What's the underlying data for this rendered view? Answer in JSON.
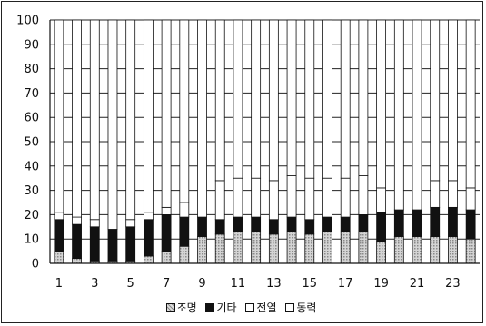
{
  "chart_data": {
    "type": "bar",
    "stacked": true,
    "categories": [
      "1",
      "2",
      "3",
      "4",
      "5",
      "6",
      "7",
      "8",
      "9",
      "10",
      "11",
      "12",
      "13",
      "14",
      "15",
      "16",
      "17",
      "18",
      "19",
      "20",
      "21",
      "22",
      "23",
      "24"
    ],
    "x_tick_labels": [
      "1",
      "3",
      "5",
      "7",
      "9",
      "11",
      "13",
      "15",
      "17",
      "19",
      "21",
      "23"
    ],
    "ylim": [
      0,
      100
    ],
    "y_ticks": [
      0,
      10,
      20,
      30,
      40,
      50,
      60,
      70,
      80,
      90,
      100
    ],
    "grid": true,
    "legend_position": "bottom",
    "series": [
      {
        "name": "조명",
        "color": "#b8b8b8",
        "values": [
          5,
          2,
          1,
          1,
          1,
          3,
          5,
          7,
          11,
          12,
          13,
          13,
          12,
          13,
          12,
          13,
          13,
          13,
          9,
          11,
          11,
          11,
          11,
          10
        ]
      },
      {
        "name": "기타",
        "color": "#111111",
        "values": [
          13,
          14,
          14,
          13,
          14,
          15,
          15,
          12,
          8,
          6,
          6,
          6,
          6,
          6,
          6,
          6,
          6,
          7,
          12,
          11,
          11,
          12,
          12,
          12
        ]
      },
      {
        "name": "전열",
        "color": "#ffffff",
        "values": [
          3,
          3,
          3,
          3,
          3,
          3,
          3,
          6,
          14,
          16,
          16,
          16,
          16,
          17,
          17,
          16,
          16,
          16,
          10,
          11,
          11,
          11,
          11,
          9
        ]
      },
      {
        "name": "동력",
        "color": "#ffffff",
        "values": [
          79,
          81,
          82,
          83,
          82,
          79,
          77,
          75,
          67,
          66,
          65,
          65,
          66,
          64,
          65,
          65,
          65,
          64,
          69,
          67,
          67,
          66,
          66,
          69
        ]
      }
    ]
  }
}
